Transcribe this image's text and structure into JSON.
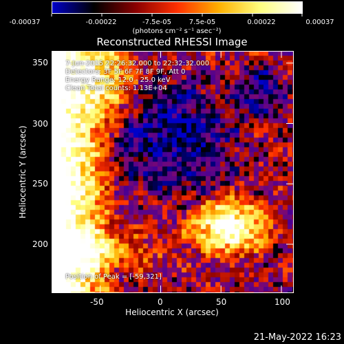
{
  "colorbar": {
    "tick_labels": [
      "-0.00037",
      "-0.00022",
      "-7.5e-05",
      "7.5e-05",
      "0.00022",
      "0.00037"
    ],
    "unit_label": "(photons cm⁻² s⁻¹ asec⁻²)",
    "colormap": [
      "#0000c8",
      "#000000",
      "#8a0000",
      "#ff3000",
      "#ffb000",
      "#ffff80",
      "#ffffff"
    ]
  },
  "image": {
    "title": "Reconstructed RHESSI Image",
    "x_label": "Heliocentric X (arcsec)",
    "y_label": "Heliocentric Y (arcsec)",
    "x_range": [
      -90,
      110
    ],
    "y_range": [
      160,
      360
    ],
    "x_ticks": [
      "-50",
      "0",
      "50",
      "100"
    ],
    "y_ticks": [
      "200",
      "250",
      "300",
      "350"
    ],
    "annotations": {
      "time": "7-Jun-2015 22:26:32.000 to 22:32:32.000",
      "detectors": "Detectors: 3F 5F 6F 7F 8F 9F, Att 0",
      "energy": "Energy Range: 12.0 - 25.0 keV",
      "clean": "Clean    Total counts: 1.13E+04",
      "peak": "Position of Peak = [-59,321]"
    }
  },
  "footer": {
    "date": "21-May-2022 16:23"
  }
}
